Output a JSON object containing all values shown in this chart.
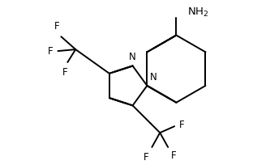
{
  "background": "#ffffff",
  "line_color": "#000000",
  "line_width": 1.4,
  "font_size": 8.5,
  "figsize": [
    3.12,
    2.04
  ],
  "dpi": 100,
  "xlim": [
    0,
    312
  ],
  "ylim": [
    0,
    204
  ]
}
